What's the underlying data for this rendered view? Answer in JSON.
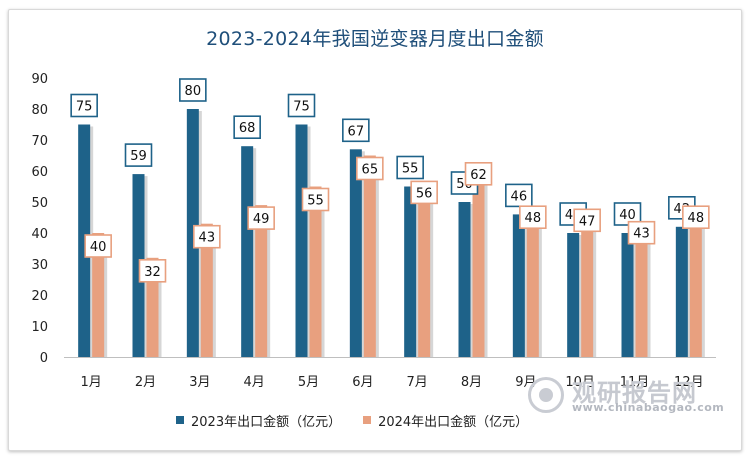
{
  "chart_data": {
    "type": "bar",
    "title": "2023-2024年我国逆变器月度出口金额",
    "categories": [
      "1月",
      "2月",
      "3月",
      "4月",
      "5月",
      "6月",
      "7月",
      "8月",
      "9月",
      "10月",
      "11月",
      "12月"
    ],
    "series": [
      {
        "name": "2023年出口金额（亿元）",
        "color": "#1e6289",
        "values": [
          75,
          59,
          80,
          68,
          75,
          67,
          55,
          50,
          46,
          40,
          40,
          42
        ]
      },
      {
        "name": "2024年出口金额（亿元）",
        "color": "#e8a07f",
        "values": [
          40,
          32,
          43,
          49,
          55,
          65,
          56,
          62,
          48,
          47,
          43,
          48
        ]
      }
    ],
    "ylim": [
      0,
      90
    ],
    "yticks": [
      0,
      10,
      20,
      30,
      40,
      50,
      60,
      70,
      80,
      90
    ],
    "xlabel": "",
    "ylabel": "",
    "legend_position": "bottom"
  },
  "watermark": {
    "text": "观研报告网",
    "url": "www.chinabaogao.com"
  }
}
